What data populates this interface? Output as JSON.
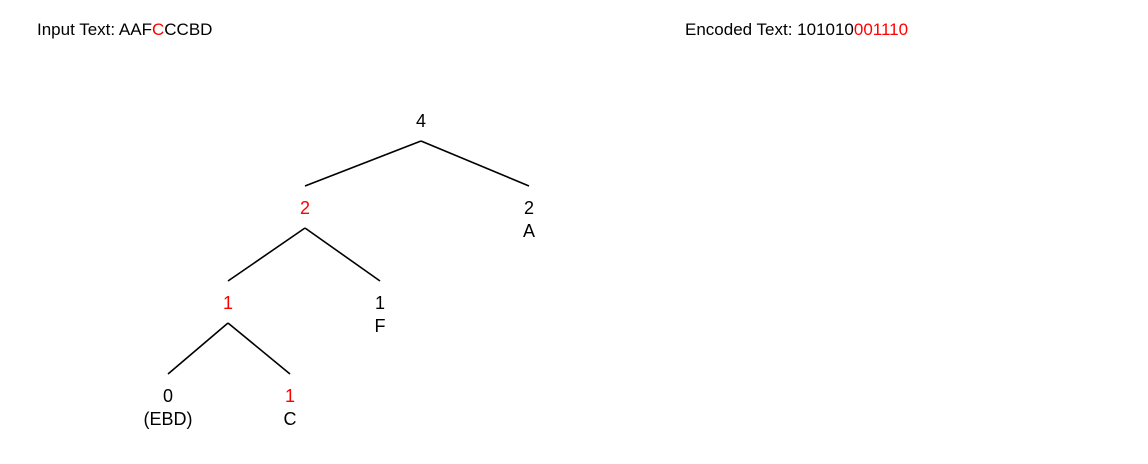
{
  "header": {
    "input_label": "Input Text: ",
    "input_plain": "AAF",
    "input_highlight": "C",
    "input_rest": "CCBD",
    "encoded_label": "Encoded Text: ",
    "encoded_plain": "101010",
    "encoded_highlight": "001110"
  },
  "colors": {
    "highlight": "#ff0000",
    "normal": "#000000"
  },
  "tree": {
    "nodes": [
      {
        "id": "root",
        "weight": "4",
        "symbol": "",
        "highlighted": false
      },
      {
        "id": "n-l",
        "weight": "2",
        "symbol": "",
        "highlighted": true
      },
      {
        "id": "n-r",
        "weight": "2",
        "symbol": "A",
        "highlighted": false
      },
      {
        "id": "n-ll",
        "weight": "1",
        "symbol": "",
        "highlighted": true
      },
      {
        "id": "n-lr",
        "weight": "1",
        "symbol": "F",
        "highlighted": false
      },
      {
        "id": "n-lll",
        "weight": "0",
        "symbol": "(EBD)",
        "highlighted": false
      },
      {
        "id": "n-llr",
        "weight": "1",
        "symbol": "C",
        "highlighted": true
      }
    ],
    "edges": [
      [
        "root",
        "n-l"
      ],
      [
        "root",
        "n-r"
      ],
      [
        "n-l",
        "n-ll"
      ],
      [
        "n-l",
        "n-lr"
      ],
      [
        "n-ll",
        "n-lll"
      ],
      [
        "n-ll",
        "n-llr"
      ]
    ]
  }
}
